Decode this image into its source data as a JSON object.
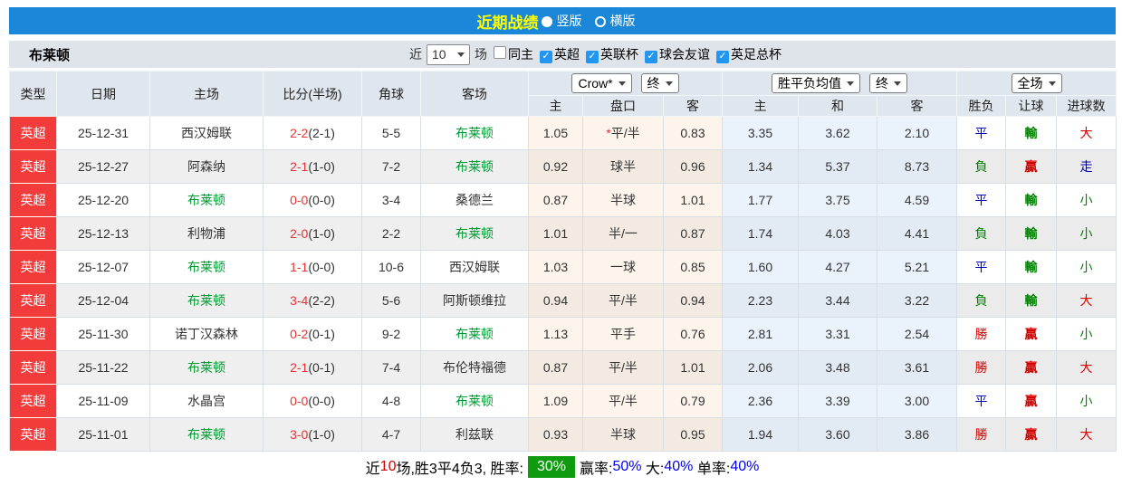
{
  "colors": {
    "accent_blue": "#1b87d8",
    "title_yellow": "#ffff00",
    "type_red": "#f23b3b",
    "team_green": "#009933",
    "plain_text": "#333333",
    "score_red": "#e63333",
    "red": "#d40000",
    "green": "#008000",
    "blue": "#0000bb",
    "black": "#000000",
    "percent_blue": "#0000ee",
    "summary_badge_green": "#0f9b0f"
  },
  "topbar": {
    "title": "近期战绩",
    "layout_options": [
      {
        "label": "竖版",
        "selected": true
      },
      {
        "label": "横版",
        "selected": false
      }
    ]
  },
  "filterbar": {
    "team": "布莱顿",
    "recent_label": "近",
    "recent_count": "10",
    "matches_label": "场",
    "checkboxes": [
      {
        "label": "同主",
        "checked": false
      },
      {
        "label": "英超",
        "checked": true
      },
      {
        "label": "英联杯",
        "checked": true
      },
      {
        "label": "球会友谊",
        "checked": true
      },
      {
        "label": "英足总杯",
        "checked": true
      }
    ]
  },
  "table": {
    "main_headers": [
      "类型",
      "日期",
      "主场",
      "比分(半场)",
      "角球",
      "客场"
    ],
    "group1": {
      "bookmaker": "Crow*",
      "time": "终",
      "cols": [
        "主",
        "盘口",
        "客"
      ]
    },
    "group2": {
      "bookmaker": "胜平负均值",
      "time": "终",
      "cols": [
        "主",
        "和",
        "客"
      ]
    },
    "group3": {
      "period": "全场",
      "cols": [
        "胜负",
        "让球",
        "进球数"
      ]
    },
    "rows": [
      {
        "type": "英超",
        "date": "25-12-31",
        "home": "西汉姆联",
        "score": "2-2",
        "half": "(2-1)",
        "corners": "5-5",
        "away": "布莱顿",
        "o1": [
          "1.05",
          "平/半",
          "0.83"
        ],
        "o1_star": true,
        "o2": [
          "3.35",
          "3.62",
          "2.10"
        ],
        "res": [
          {
            "t": "平",
            "c": "blue"
          },
          {
            "t": "輸",
            "c": "green"
          },
          {
            "t": "大",
            "c": "red"
          }
        ]
      },
      {
        "type": "英超",
        "date": "25-12-27",
        "home": "阿森纳",
        "score": "2-1",
        "half": "(1-0)",
        "corners": "7-2",
        "away": "布莱顿",
        "o1": [
          "0.92",
          "球半",
          "0.96"
        ],
        "o1_star": false,
        "o2": [
          "1.34",
          "5.37",
          "8.73"
        ],
        "res": [
          {
            "t": "負",
            "c": "green"
          },
          {
            "t": "贏",
            "c": "red"
          },
          {
            "t": "走",
            "c": "blue"
          }
        ]
      },
      {
        "type": "英超",
        "date": "25-12-20",
        "home": "布莱顿",
        "score": "0-0",
        "half": "(0-0)",
        "corners": "3-4",
        "away": "桑德兰",
        "o1": [
          "0.87",
          "半球",
          "1.01"
        ],
        "o1_star": false,
        "o2": [
          "1.77",
          "3.75",
          "4.59"
        ],
        "res": [
          {
            "t": "平",
            "c": "blue"
          },
          {
            "t": "輸",
            "c": "green"
          },
          {
            "t": "小",
            "c": "green"
          }
        ]
      },
      {
        "type": "英超",
        "date": "25-12-13",
        "home": "利物浦",
        "score": "2-0",
        "half": "(1-0)",
        "corners": "2-2",
        "away": "布莱顿",
        "o1": [
          "1.01",
          "半/一",
          "0.87"
        ],
        "o1_star": false,
        "o2": [
          "1.74",
          "4.03",
          "4.41"
        ],
        "res": [
          {
            "t": "負",
            "c": "green"
          },
          {
            "t": "輸",
            "c": "green"
          },
          {
            "t": "小",
            "c": "green"
          }
        ]
      },
      {
        "type": "英超",
        "date": "25-12-07",
        "home": "布莱顿",
        "score": "1-1",
        "half": "(0-0)",
        "corners": "10-6",
        "away": "西汉姆联",
        "o1": [
          "1.03",
          "一球",
          "0.85"
        ],
        "o1_star": false,
        "o2": [
          "1.60",
          "4.27",
          "5.21"
        ],
        "res": [
          {
            "t": "平",
            "c": "blue"
          },
          {
            "t": "輸",
            "c": "green"
          },
          {
            "t": "小",
            "c": "green"
          }
        ]
      },
      {
        "type": "英超",
        "date": "25-12-04",
        "home": "布莱顿",
        "score": "3-4",
        "half": "(2-2)",
        "corners": "5-6",
        "away": "阿斯顿维拉",
        "o1": [
          "0.94",
          "平/半",
          "0.94"
        ],
        "o1_star": false,
        "o2": [
          "2.23",
          "3.44",
          "3.22"
        ],
        "res": [
          {
            "t": "負",
            "c": "green"
          },
          {
            "t": "輸",
            "c": "green"
          },
          {
            "t": "大",
            "c": "red"
          }
        ]
      },
      {
        "type": "英超",
        "date": "25-11-30",
        "home": "诺丁汉森林",
        "score": "0-2",
        "half": "(0-1)",
        "corners": "9-2",
        "away": "布莱顿",
        "o1": [
          "1.13",
          "平手",
          "0.76"
        ],
        "o1_star": false,
        "o2": [
          "2.81",
          "3.31",
          "2.54"
        ],
        "res": [
          {
            "t": "勝",
            "c": "red"
          },
          {
            "t": "贏",
            "c": "red"
          },
          {
            "t": "小",
            "c": "green"
          }
        ]
      },
      {
        "type": "英超",
        "date": "25-11-22",
        "home": "布莱顿",
        "score": "2-1",
        "half": "(0-1)",
        "corners": "7-4",
        "away": "布伦特福德",
        "o1": [
          "0.87",
          "平/半",
          "1.01"
        ],
        "o1_star": false,
        "o2": [
          "2.06",
          "3.48",
          "3.61"
        ],
        "res": [
          {
            "t": "勝",
            "c": "red"
          },
          {
            "t": "贏",
            "c": "red"
          },
          {
            "t": "大",
            "c": "red"
          }
        ]
      },
      {
        "type": "英超",
        "date": "25-11-09",
        "home": "水晶宫",
        "score": "0-0",
        "half": "(0-0)",
        "corners": "4-8",
        "away": "布莱顿",
        "o1": [
          "1.09",
          "平/半",
          "0.79"
        ],
        "o1_star": false,
        "o2": [
          "2.36",
          "3.39",
          "3.00"
        ],
        "res": [
          {
            "t": "平",
            "c": "blue"
          },
          {
            "t": "贏",
            "c": "red"
          },
          {
            "t": "小",
            "c": "green"
          }
        ]
      },
      {
        "type": "英超",
        "date": "25-11-01",
        "home": "布莱顿",
        "score": "3-0",
        "half": "(1-0)",
        "corners": "4-7",
        "away": "利兹联",
        "o1": [
          "0.93",
          "半球",
          "0.95"
        ],
        "o1_star": false,
        "o2": [
          "1.94",
          "3.60",
          "3.86"
        ],
        "res": [
          {
            "t": "勝",
            "c": "red"
          },
          {
            "t": "贏",
            "c": "red"
          },
          {
            "t": "大",
            "c": "red"
          }
        ]
      }
    ]
  },
  "summary": {
    "segments": [
      {
        "t": "近",
        "c": "black"
      },
      {
        "t": "10",
        "c": "red"
      },
      {
        "t": "场,胜3平4负3, 胜率:",
        "c": "black"
      },
      {
        "t": "30%",
        "badge": true
      },
      {
        "t": "赢率:",
        "c": "black"
      },
      {
        "t": "50%",
        "c": "percent_blue"
      },
      {
        "t": " 大:",
        "c": "black"
      },
      {
        "t": "40%",
        "c": "percent_blue"
      },
      {
        "t": " 单率:",
        "c": "black"
      },
      {
        "t": "40%",
        "c": "percent_blue"
      }
    ]
  }
}
